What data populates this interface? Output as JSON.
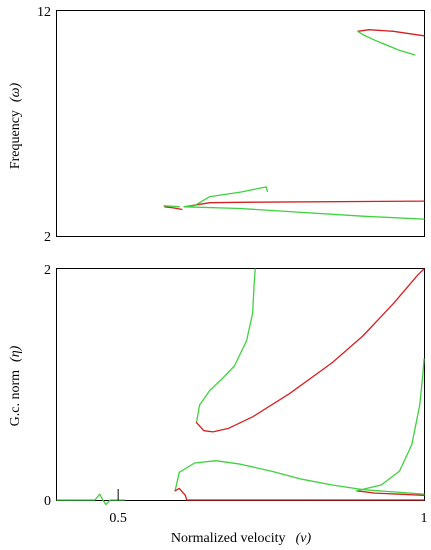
{
  "chart_data": [
    {
      "type": "line",
      "ylabel": "Frequency",
      "ylabel_symbol": "(ω)",
      "xlim": [
        0.4,
        1.0
      ],
      "ylim": [
        2,
        12
      ],
      "yticks": [
        {
          "value": 2,
          "label": "2"
        },
        {
          "value": 12,
          "label": "12"
        }
      ],
      "xticks": [],
      "colors": {
        "red": "#d42020",
        "green": "#3fd13f"
      },
      "series": [
        {
          "color": "red",
          "points": [
            [
              0.892,
              11.1
            ],
            [
              0.91,
              11.17
            ],
            [
              0.95,
              11.1
            ],
            [
              1.0,
              10.9
            ]
          ]
        },
        {
          "color": "green",
          "points": [
            [
              0.892,
              11.1
            ],
            [
              0.9,
              10.95
            ],
            [
              0.92,
              10.7
            ],
            [
              0.96,
              10.25
            ],
            [
              0.985,
              10.05
            ]
          ]
        },
        {
          "color": "red",
          "points": [
            [
              0.608,
              3.3
            ],
            [
              0.65,
              3.48
            ],
            [
              0.7,
              3.5
            ],
            [
              1.0,
              3.55
            ]
          ]
        },
        {
          "color": "green",
          "points": [
            [
              0.608,
              3.3
            ],
            [
              0.7,
              3.22
            ],
            [
              0.8,
              3.05
            ],
            [
              0.9,
              2.88
            ],
            [
              1.0,
              2.75
            ]
          ]
        },
        {
          "color": "green",
          "points": [
            [
              0.608,
              3.3
            ],
            [
              0.625,
              3.35
            ],
            [
              0.65,
              3.75
            ],
            [
              0.7,
              3.95
            ],
            [
              0.742,
              4.18
            ],
            [
              0.744,
              3.98
            ]
          ]
        },
        {
          "color": "red",
          "points": [
            [
              0.576,
              3.3
            ],
            [
              0.59,
              3.25
            ],
            [
              0.604,
              3.18
            ]
          ]
        },
        {
          "color": "green",
          "points": [
            [
              0.575,
              3.34
            ],
            [
              0.59,
              3.32
            ],
            [
              0.6,
              3.3
            ]
          ]
        }
      ]
    },
    {
      "type": "line",
      "xlabel": "Normalized velocity",
      "xlabel_symbol": "(v)",
      "ylabel": "G.c. norm",
      "ylabel_symbol": "(η)",
      "xlim": [
        0.4,
        1.0
      ],
      "ylim": [
        0,
        2
      ],
      "xticks": [
        {
          "value": 0.5,
          "label": "0.5"
        },
        {
          "value": 1.0,
          "label": "1"
        }
      ],
      "yticks": [
        {
          "value": 0,
          "label": "0"
        },
        {
          "value": 2,
          "label": "2"
        }
      ],
      "colors": {
        "red": "#d42020",
        "green": "#3fd13f"
      },
      "series": [
        {
          "color": "green",
          "points": [
            [
              0.4,
              0.0
            ],
            [
              0.462,
              0.0
            ],
            [
              0.47,
              0.05
            ],
            [
              0.475,
              0.0
            ],
            [
              0.48,
              -0.04
            ],
            [
              0.487,
              0.0
            ],
            [
              0.5,
              0.0
            ],
            [
              0.51,
              0.0
            ]
          ]
        },
        {
          "color": "green",
          "points": [
            [
              0.628,
              0.67
            ],
            [
              0.633,
              0.82
            ],
            [
              0.65,
              0.95
            ],
            [
              0.67,
              1.05
            ],
            [
              0.69,
              1.16
            ],
            [
              0.71,
              1.38
            ],
            [
              0.72,
              1.62
            ],
            [
              0.722,
              1.85
            ],
            [
              0.724,
              2.0
            ]
          ]
        },
        {
          "color": "red",
          "points": [
            [
              0.628,
              0.67
            ],
            [
              0.64,
              0.6
            ],
            [
              0.655,
              0.59
            ],
            [
              0.68,
              0.62
            ],
            [
              0.72,
              0.72
            ],
            [
              0.78,
              0.92
            ],
            [
              0.85,
              1.19
            ],
            [
              0.9,
              1.42
            ],
            [
              0.95,
              1.7
            ],
            [
              0.99,
              1.95
            ],
            [
              1.0,
              2.0
            ]
          ]
        },
        {
          "color": "green",
          "points": [
            [
              0.593,
              0.08
            ],
            [
              0.6,
              0.24
            ],
            [
              0.625,
              0.32
            ],
            [
              0.66,
              0.34
            ],
            [
              0.7,
              0.31
            ],
            [
              0.75,
              0.25
            ],
            [
              0.8,
              0.18
            ],
            [
              0.85,
              0.13
            ],
            [
              0.9,
              0.09
            ],
            [
              0.95,
              0.07
            ],
            [
              1.0,
              0.05
            ]
          ]
        },
        {
          "color": "red",
          "points": [
            [
              0.593,
              0.08
            ],
            [
              0.6,
              0.1
            ],
            [
              0.61,
              0.04
            ],
            [
              0.612,
              0.0
            ],
            [
              1.0,
              0.0
            ]
          ]
        },
        {
          "color": "red",
          "points": [
            [
              0.89,
              0.08
            ],
            [
              0.92,
              0.06
            ],
            [
              0.96,
              0.05
            ],
            [
              1.0,
              0.04
            ]
          ]
        },
        {
          "color": "green",
          "points": [
            [
              0.89,
              0.08
            ],
            [
              0.93,
              0.13
            ],
            [
              0.96,
              0.25
            ],
            [
              0.98,
              0.48
            ],
            [
              0.993,
              0.82
            ],
            [
              0.998,
              1.08
            ],
            [
              1.0,
              1.22
            ]
          ]
        }
      ]
    }
  ]
}
